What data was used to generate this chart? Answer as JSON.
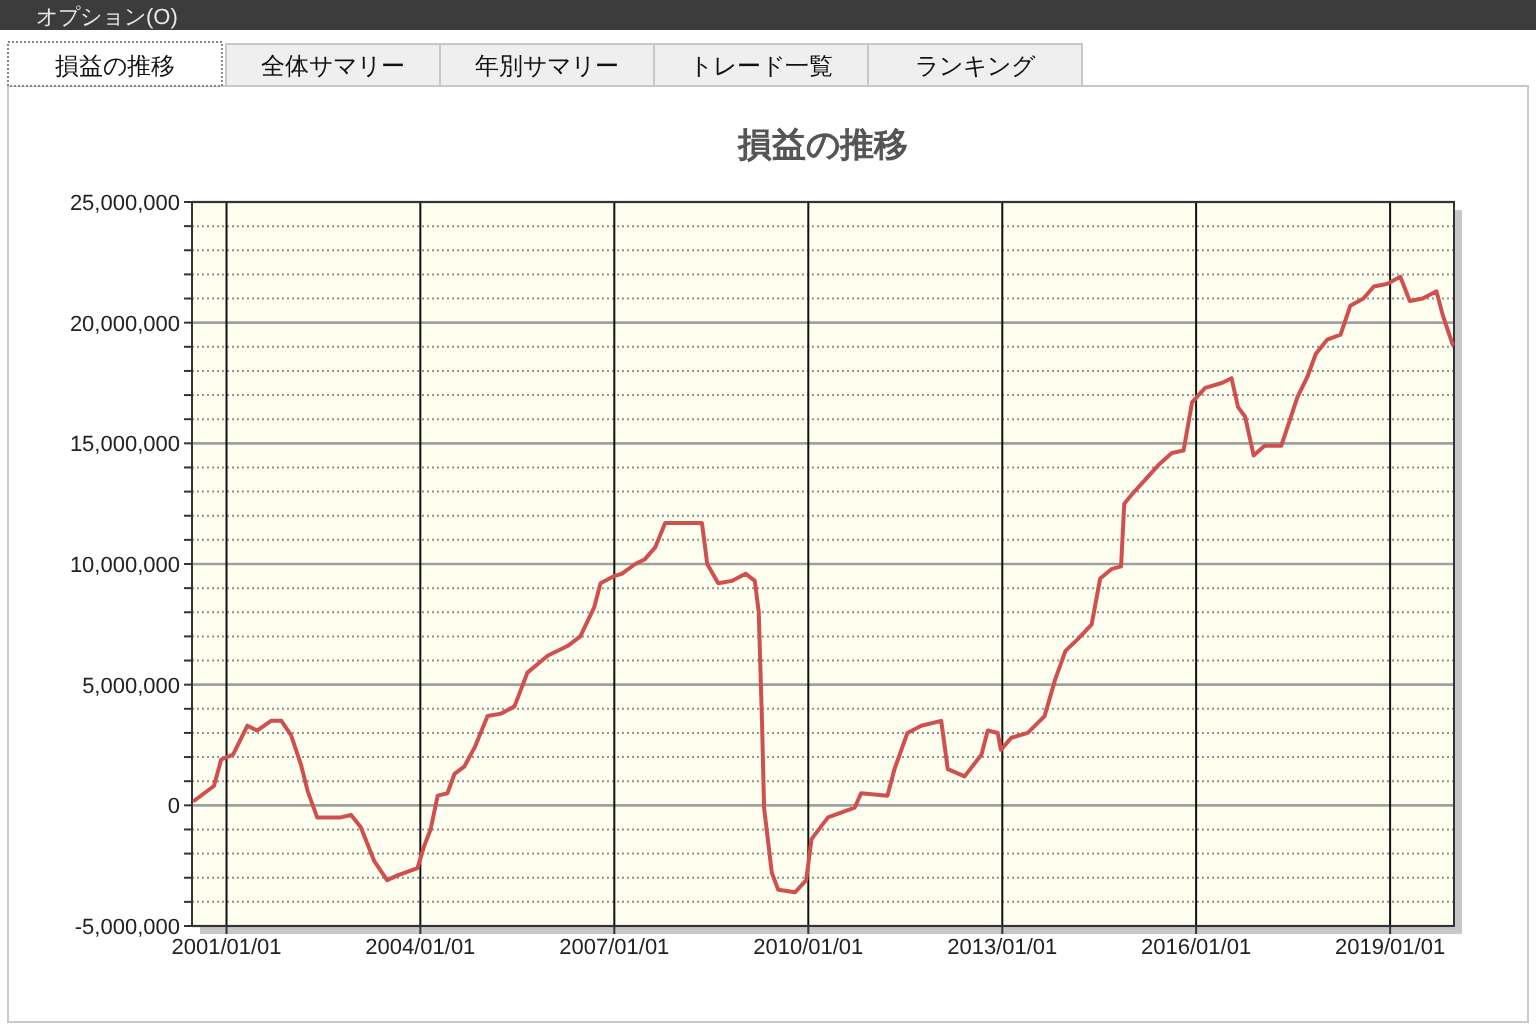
{
  "chart_data": {
    "type": "line",
    "title": "損益の推移",
    "annotations": [
      "オプション(O)",
      "損益の推移",
      "全体サマリー",
      "年別サマリー",
      "トレード一覧",
      "ランキング"
    ],
    "x": [
      "2000-07-04",
      "2000-10-22",
      "2000-12-02",
      "2001-02-07",
      "2001-04-29",
      "2001-06-23",
      "2001-09-09",
      "2001-11-07",
      "2002-01-01",
      "2002-02-25",
      "2002-04-04",
      "2002-05-28",
      "2002-10-08",
      "2002-12-06",
      "2003-01-29",
      "2003-04-15",
      "2003-06-27",
      "2003-08-25",
      "2003-12-16",
      "2004-01-22",
      "2004-02-28",
      "2004-04-08",
      "2004-06-02",
      "2004-07-12",
      "2004-09-05",
      "2004-11-03",
      "2005-01-15",
      "2005-04-01",
      "2005-06-16",
      "2005-08-28",
      "2005-12-20",
      "2006-04-11",
      "2006-06-23",
      "2006-09-09",
      "2006-10-15",
      "2007-01-01",
      "2007-02-14",
      "2007-04-29",
      "2007-06-23",
      "2007-08-21",
      "2007-10-15",
      "2008-01-19",
      "2008-05-10",
      "2008-06-09",
      "2008-08-10",
      "2008-10-26",
      "2009-01-11",
      "2009-03-05",
      "2009-03-27",
      "2009-04-15",
      "2009-04-26",
      "2009-06-09",
      "2009-07-15",
      "2009-10-19",
      "2009-12-20",
      "2010-01-19",
      "2010-04-22",
      "2010-09-20",
      "2010-10-26",
      "2011-03-24",
      "2011-05-03",
      "2011-07-15",
      "2011-10-01",
      "2012-01-22",
      "2012-02-28",
      "2012-06-02",
      "2012-09-05",
      "2012-10-11",
      "2012-12-06",
      "2012-12-24",
      "2013-02-21",
      "2013-05-25",
      "2013-08-28",
      "2013-10-26",
      "2013-12-24",
      "2014-03-05",
      "2014-05-21",
      "2014-07-08",
      "2014-09-13",
      "2014-11-03",
      "2014-11-21",
      "2015-01-05",
      "2015-03-20",
      "2015-06-02",
      "2015-08-17",
      "2015-10-22",
      "2015-12-09",
      "2016-02-21",
      "2016-05-25",
      "2016-07-19",
      "2016-08-25",
      "2016-10-04",
      "2016-11-21",
      "2017-01-22",
      "2017-04-26",
      "2017-06-02",
      "2017-07-26",
      "2017-09-23",
      "2017-11-07",
      "2018-01-11",
      "2018-03-27",
      "2018-05-21",
      "2018-08-03",
      "2018-10-01",
      "2018-12-13",
      "2019-02-28",
      "2019-04-22",
      "2019-07-04",
      "2019-09-20",
      "2019-10-26",
      "2019-12-20"
    ],
    "series": [
      {
        "color": "#d05050",
        "values": [
          200000,
          800000,
          1900000,
          2100000,
          3300000,
          3100000,
          3500000,
          3500000,
          2900000,
          1700000,
          600000,
          -500000,
          -500000,
          -400000,
          -900000,
          -2300000,
          -3100000,
          -2900000,
          -2600000,
          -1700000,
          -1000000,
          400000,
          500000,
          1300000,
          1600000,
          2400000,
          3700000,
          3800000,
          4100000,
          5500000,
          6200000,
          6600000,
          7000000,
          8200000,
          9200000,
          9500000,
          9600000,
          10000000,
          10200000,
          10700000,
          11700000,
          11700000,
          11700000,
          10000000,
          9200000,
          9300000,
          9600000,
          9300000,
          8000000,
          3300000,
          -100000,
          -2800000,
          -3500000,
          -3600000,
          -3100000,
          -1400000,
          -500000,
          -100000,
          500000,
          400000,
          1500000,
          3000000,
          3300000,
          3500000,
          1500000,
          1200000,
          2100000,
          3100000,
          3000000,
          2300000,
          2800000,
          3000000,
          3700000,
          5200000,
          6400000,
          6900000,
          7500000,
          9400000,
          9800000,
          9900000,
          12500000,
          12900000,
          13500000,
          14100000,
          14600000,
          14700000,
          16700000,
          17300000,
          17500000,
          17700000,
          16500000,
          16100000,
          14500000,
          14900000,
          14900000,
          15700000,
          16900000,
          17800000,
          18700000,
          19300000,
          19500000,
          20700000,
          21000000,
          21500000,
          21600000,
          21900000,
          20900000,
          21000000,
          21300000,
          20300000,
          19100000
        ]
      }
    ],
    "xlim": [
      "2000-06-20",
      "2019-12-28"
    ],
    "xticks": [
      {
        "value": "2001-01-01",
        "label": "2001/01/01"
      },
      {
        "value": "2004-01-01",
        "label": "2004/01/01"
      },
      {
        "value": "2007-01-01",
        "label": "2007/01/01"
      },
      {
        "value": "2010-01-01",
        "label": "2010/01/01"
      },
      {
        "value": "2013-01-01",
        "label": "2013/01/01"
      },
      {
        "value": "2016-01-01",
        "label": "2016/01/01"
      },
      {
        "value": "2019-01-01",
        "label": "2019/01/01"
      }
    ],
    "ylim": [
      -5000000,
      25000000
    ],
    "yticks": [
      {
        "value": -5000000,
        "label": "-5,000,000"
      },
      {
        "value": -4000000,
        "label": null
      },
      {
        "value": -3000000,
        "label": null
      },
      {
        "value": -2000000,
        "label": null
      },
      {
        "value": -1000000,
        "label": null
      },
      0,
      {
        "value": 1000000,
        "label": null
      },
      {
        "value": 2000000,
        "label": null
      },
      {
        "value": 3000000,
        "label": null
      },
      {
        "value": 4000000,
        "label": null
      },
      {
        "value": 5000000,
        "label": "5,000,000"
      },
      {
        "value": 6000000,
        "label": null
      },
      {
        "value": 7000000,
        "label": null
      },
      {
        "value": 8000000,
        "label": null
      },
      {
        "value": 9000000,
        "label": null
      },
      {
        "value": 10000000,
        "label": "10,000,000"
      },
      {
        "value": 11000000,
        "label": null
      },
      {
        "value": 12000000,
        "label": null
      },
      {
        "value": 13000000,
        "label": null
      },
      {
        "value": 14000000,
        "label": null
      },
      {
        "value": 15000000,
        "label": "15,000,000"
      },
      {
        "value": 16000000,
        "label": null
      },
      {
        "value": 17000000,
        "label": null
      },
      {
        "value": 18000000,
        "label": null
      },
      {
        "value": 19000000,
        "label": null
      },
      {
        "value": 20000000,
        "label": "20,000,000"
      },
      {
        "value": 21000000,
        "label": null
      },
      {
        "value": 22000000,
        "label": null
      },
      {
        "value": 23000000,
        "label": null
      },
      {
        "value": 24000000,
        "label": null
      },
      {
        "value": 25000000,
        "label": "25,000,000"
      }
    ],
    "grid": true,
    "marker": "none",
    "line_style": "solid"
  }
}
